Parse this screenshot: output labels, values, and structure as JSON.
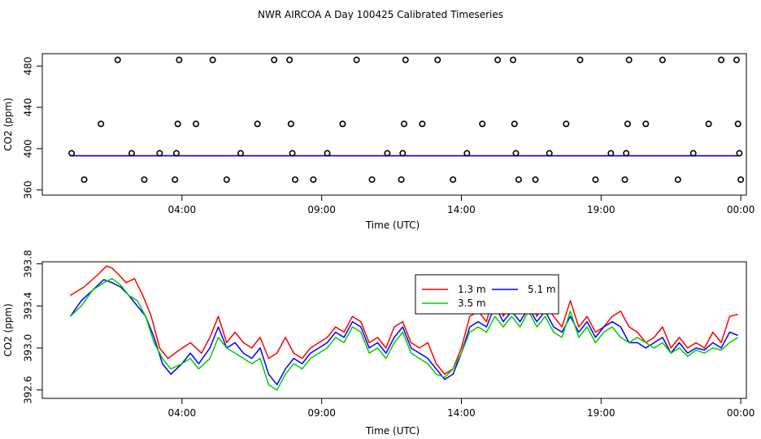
{
  "title": "NWR AIRCOA A  Day 100425  Calibrated Timeseries",
  "chart_data": [
    {
      "type": "scatter",
      "xlabel": "Time (UTC)",
      "ylabel": "CO2 (ppm)",
      "x_unit": "hours (UTC)",
      "xlim": [
        -1.0,
        24.2
      ],
      "ylim": [
        355,
        492
      ],
      "x_ticks": [
        {
          "value": 4,
          "label": "04:00"
        },
        {
          "value": 9,
          "label": "09:00"
        },
        {
          "value": 14,
          "label": "14:00"
        },
        {
          "value": 19,
          "label": "19:00"
        },
        {
          "value": 24,
          "label": "00:00"
        }
      ],
      "y_ticks": [
        {
          "value": 360,
          "label": "360"
        },
        {
          "value": 400,
          "label": "400"
        },
        {
          "value": 440,
          "label": "440"
        },
        {
          "value": 480,
          "label": "480"
        }
      ],
      "calibration_points": [
        {
          "x": 0.5,
          "y": 370
        },
        {
          "x": 1.1,
          "y": 424
        },
        {
          "x": 0.05,
          "y": 395.5
        },
        {
          "x": 1.7,
          "y": 486
        },
        {
          "x": 2.2,
          "y": 395.5
        },
        {
          "x": 2.65,
          "y": 370
        },
        {
          "x": 3.2,
          "y": 395.5
        },
        {
          "x": 3.75,
          "y": 370
        },
        {
          "x": 3.8,
          "y": 395.5
        },
        {
          "x": 3.85,
          "y": 424
        },
        {
          "x": 3.9,
          "y": 486
        },
        {
          "x": 4.5,
          "y": 424
        },
        {
          "x": 5.1,
          "y": 486
        },
        {
          "x": 5.6,
          "y": 370
        },
        {
          "x": 6.1,
          "y": 395.5
        },
        {
          "x": 6.7,
          "y": 424
        },
        {
          "x": 7.3,
          "y": 486
        },
        {
          "x": 7.85,
          "y": 486
        },
        {
          "x": 7.9,
          "y": 424
        },
        {
          "x": 7.95,
          "y": 395.5
        },
        {
          "x": 8.05,
          "y": 370
        },
        {
          "x": 8.7,
          "y": 370
        },
        {
          "x": 9.2,
          "y": 395.5
        },
        {
          "x": 9.75,
          "y": 424
        },
        {
          "x": 10.25,
          "y": 486
        },
        {
          "x": 10.8,
          "y": 370
        },
        {
          "x": 11.35,
          "y": 395.5
        },
        {
          "x": 11.85,
          "y": 370
        },
        {
          "x": 11.9,
          "y": 395.5
        },
        {
          "x": 11.95,
          "y": 424
        },
        {
          "x": 12.0,
          "y": 486
        },
        {
          "x": 12.6,
          "y": 424
        },
        {
          "x": 13.15,
          "y": 486
        },
        {
          "x": 13.7,
          "y": 370
        },
        {
          "x": 14.2,
          "y": 395.5
        },
        {
          "x": 14.75,
          "y": 424
        },
        {
          "x": 15.3,
          "y": 486
        },
        {
          "x": 15.85,
          "y": 486
        },
        {
          "x": 15.9,
          "y": 424
        },
        {
          "x": 15.95,
          "y": 395.5
        },
        {
          "x": 16.05,
          "y": 370
        },
        {
          "x": 16.65,
          "y": 370
        },
        {
          "x": 17.15,
          "y": 395.5
        },
        {
          "x": 17.75,
          "y": 424
        },
        {
          "x": 18.25,
          "y": 486
        },
        {
          "x": 18.8,
          "y": 370
        },
        {
          "x": 19.35,
          "y": 395.5
        },
        {
          "x": 19.85,
          "y": 370
        },
        {
          "x": 19.9,
          "y": 395.5
        },
        {
          "x": 19.95,
          "y": 424
        },
        {
          "x": 20.0,
          "y": 486
        },
        {
          "x": 20.6,
          "y": 424
        },
        {
          "x": 21.2,
          "y": 486
        },
        {
          "x": 21.75,
          "y": 370
        },
        {
          "x": 22.3,
          "y": 395.5
        },
        {
          "x": 22.85,
          "y": 424
        },
        {
          "x": 23.3,
          "y": 486
        },
        {
          "x": 23.85,
          "y": 486
        },
        {
          "x": 23.9,
          "y": 424
        },
        {
          "x": 23.95,
          "y": 395.5
        },
        {
          "x": 24.0,
          "y": 370
        }
      ],
      "baseline_series": [
        {
          "color": "#ff0000",
          "x": [
            0,
            24
          ],
          "y": [
            393.3,
            393.3
          ]
        },
        {
          "color": "#00cc00",
          "x": [
            0,
            24
          ],
          "y": [
            393.1,
            393.1
          ]
        },
        {
          "color": "#0000ff",
          "x": [
            0,
            24
          ],
          "y": [
            393.0,
            393.0
          ]
        }
      ]
    },
    {
      "type": "line",
      "xlabel": "Time (UTC)",
      "ylabel": "CO2 (ppm)",
      "x_unit": "hours (UTC)",
      "xlim": [
        -1.0,
        24.2
      ],
      "ylim": [
        392.52,
        393.82
      ],
      "x_ticks": [
        {
          "value": 4,
          "label": "04:00"
        },
        {
          "value": 9,
          "label": "09:00"
        },
        {
          "value": 14,
          "label": "14:00"
        },
        {
          "value": 19,
          "label": "19:00"
        },
        {
          "value": 24,
          "label": "00:00"
        }
      ],
      "y_ticks": [
        {
          "value": 392.6,
          "label": "392.6"
        },
        {
          "value": 393.0,
          "label": "393.0"
        },
        {
          "value": 393.4,
          "label": "393.4"
        },
        {
          "value": 393.8,
          "label": "393.8"
        }
      ],
      "legend": {
        "placement": "top-right",
        "entries": [
          {
            "name": "1.3 m",
            "color": "#ff0000"
          },
          {
            "name": "5.1 m",
            "color": "#0000ff"
          },
          {
            "name": "3.5 m",
            "color": "#00cc00"
          }
        ]
      },
      "series": [
        {
          "name": "1.3 m",
          "color": "#ff0000",
          "x": [
            0.0,
            0.5,
            1.0,
            1.3,
            1.5,
            1.8,
            2.0,
            2.3,
            2.6,
            2.9,
            3.2,
            3.5,
            3.9,
            4.3,
            4.7,
            5.0,
            5.3,
            5.6,
            5.9,
            6.2,
            6.5,
            6.8,
            7.1,
            7.4,
            7.7,
            8.0,
            8.3,
            8.6,
            8.9,
            9.2,
            9.5,
            9.8,
            10.1,
            10.4,
            10.7,
            11.0,
            11.3,
            11.6,
            11.9,
            12.2,
            12.5,
            12.8,
            13.1,
            13.4,
            13.7,
            14.0,
            14.3,
            14.6,
            14.9,
            15.2,
            15.5,
            15.8,
            16.1,
            16.4,
            16.7,
            17.0,
            17.3,
            17.6,
            17.9,
            18.2,
            18.5,
            18.8,
            19.1,
            19.4,
            19.7,
            20.0,
            20.3,
            20.6,
            20.9,
            21.2,
            21.5,
            21.8,
            22.1,
            22.4,
            22.7,
            23.0,
            23.3,
            23.6,
            23.9
          ],
          "y": [
            393.5,
            393.58,
            393.7,
            393.78,
            393.76,
            393.68,
            393.62,
            393.66,
            393.5,
            393.3,
            393.0,
            392.9,
            392.98,
            393.05,
            392.95,
            393.1,
            393.3,
            393.05,
            393.15,
            393.05,
            393.0,
            393.1,
            392.9,
            392.95,
            393.1,
            392.95,
            392.9,
            393.0,
            393.05,
            393.1,
            393.2,
            393.15,
            393.3,
            393.25,
            393.05,
            393.1,
            393.0,
            393.2,
            393.25,
            393.05,
            393.0,
            393.05,
            392.85,
            392.75,
            392.8,
            393.0,
            393.3,
            393.35,
            393.25,
            393.55,
            393.3,
            393.45,
            393.35,
            393.5,
            393.3,
            393.45,
            393.3,
            393.2,
            393.45,
            393.2,
            393.3,
            393.15,
            393.2,
            393.3,
            393.35,
            393.2,
            393.15,
            393.05,
            393.1,
            393.2,
            393.0,
            393.1,
            393.0,
            393.05,
            393.0,
            393.15,
            393.05,
            393.3,
            393.32
          ]
        },
        {
          "name": "5.1 m",
          "color": "#0000ff",
          "x": [
            0.0,
            0.4,
            0.8,
            1.2,
            1.5,
            1.8,
            2.1,
            2.4,
            2.7,
            3.0,
            3.3,
            3.6,
            4.0,
            4.3,
            4.6,
            5.0,
            5.3,
            5.6,
            5.9,
            6.2,
            6.5,
            6.8,
            7.1,
            7.4,
            7.7,
            8.0,
            8.3,
            8.6,
            8.9,
            9.2,
            9.5,
            9.8,
            10.1,
            10.4,
            10.7,
            11.0,
            11.3,
            11.6,
            11.9,
            12.2,
            12.5,
            12.8,
            13.1,
            13.4,
            13.7,
            14.0,
            14.3,
            14.6,
            14.9,
            15.2,
            15.5,
            15.8,
            16.1,
            16.4,
            16.7,
            17.0,
            17.3,
            17.6,
            17.9,
            18.2,
            18.5,
            18.8,
            19.1,
            19.4,
            19.7,
            20.0,
            20.3,
            20.6,
            20.9,
            21.2,
            21.5,
            21.8,
            22.1,
            22.4,
            22.7,
            23.0,
            23.3,
            23.6,
            23.9
          ],
          "y": [
            393.3,
            393.45,
            393.55,
            393.65,
            393.62,
            393.58,
            393.5,
            393.4,
            393.3,
            393.1,
            392.85,
            392.75,
            392.85,
            392.95,
            392.85,
            393.0,
            393.2,
            393.0,
            393.05,
            392.95,
            392.9,
            393.0,
            392.75,
            392.65,
            392.8,
            392.9,
            392.85,
            392.95,
            393.0,
            393.05,
            393.15,
            393.1,
            393.25,
            393.2,
            393.0,
            393.05,
            392.95,
            393.1,
            393.2,
            393.0,
            392.95,
            392.9,
            392.8,
            392.7,
            392.75,
            392.95,
            393.2,
            393.25,
            393.2,
            393.4,
            393.25,
            393.35,
            393.25,
            393.38,
            393.25,
            393.35,
            393.2,
            393.15,
            393.3,
            393.15,
            393.25,
            393.1,
            393.2,
            393.25,
            393.2,
            393.05,
            393.05,
            393.0,
            393.05,
            393.1,
            392.95,
            393.05,
            392.95,
            393.0,
            392.98,
            393.05,
            393.0,
            393.15,
            393.12
          ]
        },
        {
          "name": "3.5 m",
          "color": "#00cc00",
          "x": [
            0.0,
            0.4,
            0.8,
            1.2,
            1.5,
            1.8,
            2.1,
            2.4,
            2.7,
            3.0,
            3.3,
            3.6,
            4.0,
            4.3,
            4.6,
            5.0,
            5.3,
            5.6,
            5.9,
            6.2,
            6.5,
            6.8,
            7.1,
            7.4,
            7.7,
            8.0,
            8.3,
            8.6,
            8.9,
            9.2,
            9.5,
            9.8,
            10.1,
            10.4,
            10.7,
            11.0,
            11.3,
            11.6,
            11.9,
            12.2,
            12.5,
            12.8,
            13.1,
            13.4,
            13.7,
            14.0,
            14.3,
            14.6,
            14.9,
            15.2,
            15.5,
            15.8,
            16.1,
            16.4,
            16.7,
            17.0,
            17.3,
            17.6,
            17.9,
            18.2,
            18.5,
            18.8,
            19.1,
            19.4,
            19.7,
            20.0,
            20.3,
            20.6,
            20.9,
            21.2,
            21.5,
            21.8,
            22.1,
            22.4,
            22.7,
            23.0,
            23.3,
            23.6,
            23.9
          ],
          "y": [
            393.3,
            393.4,
            393.55,
            393.62,
            393.66,
            393.6,
            393.5,
            393.45,
            393.3,
            393.05,
            392.9,
            392.8,
            392.85,
            392.9,
            392.8,
            392.9,
            393.1,
            393.0,
            392.95,
            392.9,
            392.85,
            392.9,
            392.65,
            392.6,
            392.75,
            392.85,
            392.8,
            392.9,
            392.95,
            393.0,
            393.1,
            393.05,
            393.2,
            393.15,
            392.95,
            393.0,
            392.9,
            393.05,
            393.15,
            392.95,
            392.9,
            392.85,
            392.75,
            392.72,
            392.8,
            392.95,
            393.15,
            393.2,
            393.15,
            393.3,
            393.2,
            393.3,
            393.2,
            393.35,
            393.2,
            393.3,
            393.15,
            393.1,
            393.35,
            393.1,
            393.2,
            393.05,
            393.15,
            393.2,
            393.1,
            393.05,
            393.1,
            393.05,
            393.0,
            393.05,
            392.95,
            393.0,
            392.92,
            392.98,
            392.95,
            393.0,
            392.98,
            393.05,
            393.1
          ]
        }
      ]
    }
  ]
}
